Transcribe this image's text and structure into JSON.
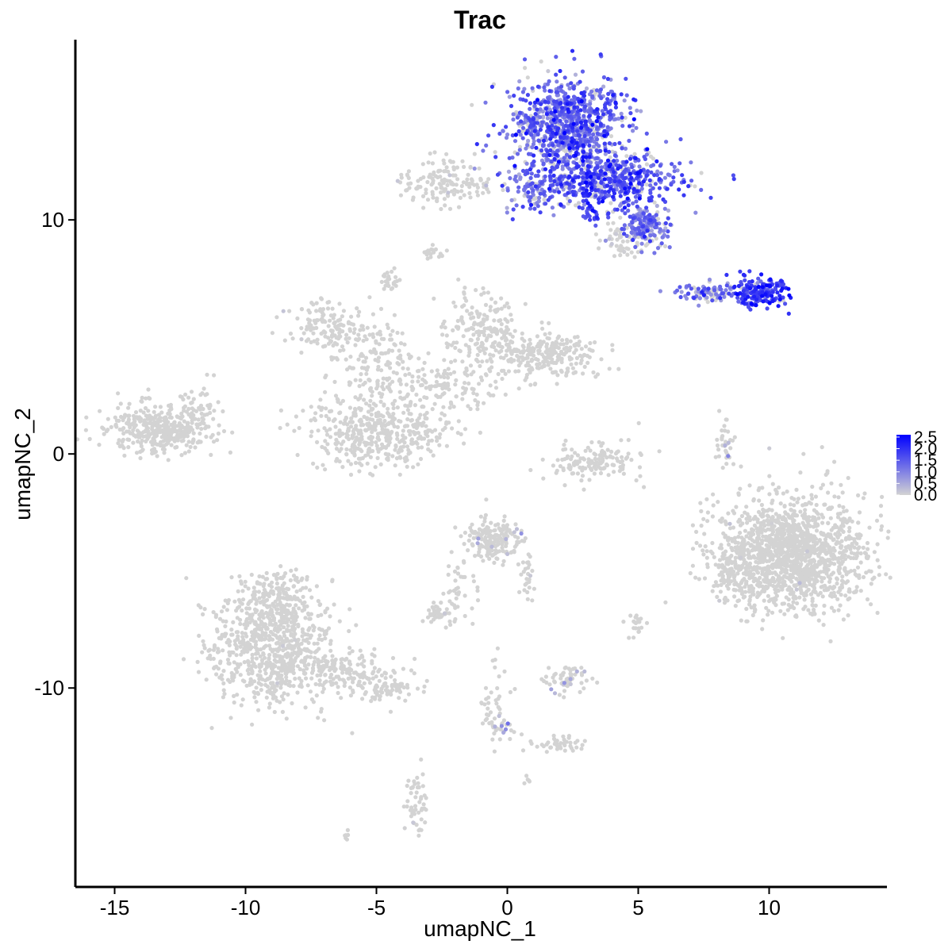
{
  "chart_data": {
    "type": "scatter",
    "title": "Trac",
    "xlabel": "umapNC_1",
    "ylabel": "umapNC_2",
    "xlim": [
      -16.5,
      14.5
    ],
    "ylim": [
      -18.5,
      17.7
    ],
    "x_ticks": [
      -15,
      -10,
      -5,
      0,
      5,
      10
    ],
    "x_tick_labels": [
      "-15",
      "-10",
      "-5",
      "0",
      "5",
      "10"
    ],
    "y_ticks": [
      -10,
      0,
      10
    ],
    "y_tick_labels": [
      "-10",
      "0",
      "10"
    ],
    "grid": false,
    "legend_position": "right",
    "color_scale": {
      "low": "#d3d3d3",
      "high": "#0000ff",
      "min": 0,
      "max": 2.6,
      "breaks": [
        0.0,
        0.5,
        1.0,
        1.5,
        2.0,
        2.5
      ],
      "break_labels": [
        "0.0",
        "0.5",
        "1.0",
        "1.5",
        "2.0",
        "2.5"
      ]
    },
    "clusters": [
      {
        "cx": 2.3,
        "cy": 14.0,
        "sx": 1.1,
        "sy": 1.0,
        "n": 900,
        "expr_mean": 1.3,
        "expr_sd": 0.5,
        "expr_frac": 0.9
      },
      {
        "cx": 4.0,
        "cy": 11.7,
        "sx": 1.3,
        "sy": 0.6,
        "n": 520,
        "expr_mean": 1.5,
        "expr_sd": 0.5,
        "expr_frac": 0.88
      },
      {
        "cx": 5.3,
        "cy": 9.8,
        "sx": 0.5,
        "sy": 0.4,
        "n": 170,
        "expr_mean": 1.2,
        "expr_sd": 0.4,
        "expr_frac": 0.85
      },
      {
        "cx": 1.0,
        "cy": 11.2,
        "sx": 0.6,
        "sy": 0.5,
        "n": 90,
        "expr_mean": 1.1,
        "expr_sd": 0.4,
        "expr_frac": 0.8
      },
      {
        "cx": 3.2,
        "cy": 10.1,
        "sx": 0.2,
        "sy": 0.15,
        "n": 15,
        "expr_mean": 1.6,
        "expr_sd": 0.3,
        "expr_frac": 1.0
      },
      {
        "cx": 4.4,
        "cy": 9.2,
        "sx": 0.5,
        "sy": 0.4,
        "n": 60,
        "expr_mean": 0.1,
        "expr_sd": 0.1,
        "expr_frac": 0.1
      },
      {
        "cx": 9.6,
        "cy": 6.9,
        "sx": 0.45,
        "sy": 0.3,
        "n": 200,
        "expr_mean": 1.8,
        "expr_sd": 0.4,
        "expr_frac": 0.95
      },
      {
        "cx": 7.6,
        "cy": 6.9,
        "sx": 0.7,
        "sy": 0.2,
        "n": 90,
        "expr_mean": 1.1,
        "expr_sd": 0.4,
        "expr_frac": 0.8
      },
      {
        "cx": -2.6,
        "cy": 11.6,
        "sx": 0.7,
        "sy": 0.5,
        "n": 120,
        "expr_mean": 0.1,
        "expr_sd": 0.1,
        "expr_frac": 0.05
      },
      {
        "cx": -1.2,
        "cy": 11.4,
        "sx": 0.6,
        "sy": 0.2,
        "n": 30,
        "expr_mean": 0.1,
        "expr_sd": 0.1,
        "expr_frac": 0.05
      },
      {
        "cx": -2.8,
        "cy": 8.6,
        "sx": 0.2,
        "sy": 0.15,
        "n": 20,
        "expr_mean": 0,
        "expr_sd": 0,
        "expr_frac": 0
      },
      {
        "cx": -4.4,
        "cy": 7.4,
        "sx": 0.2,
        "sy": 0.2,
        "n": 25,
        "expr_mean": 0,
        "expr_sd": 0,
        "expr_frac": 0
      },
      {
        "cx": -6.8,
        "cy": 5.5,
        "sx": 0.8,
        "sy": 0.5,
        "n": 140,
        "expr_mean": 0.05,
        "expr_sd": 0.1,
        "expr_frac": 0.02
      },
      {
        "cx": -5.0,
        "cy": 4.0,
        "sx": 0.9,
        "sy": 0.8,
        "n": 150,
        "expr_mean": 0,
        "expr_sd": 0,
        "expr_frac": 0
      },
      {
        "cx": -1.0,
        "cy": 5.2,
        "sx": 0.7,
        "sy": 0.9,
        "n": 180,
        "expr_mean": 0,
        "expr_sd": 0,
        "expr_frac": 0
      },
      {
        "cx": 1.5,
        "cy": 4.3,
        "sx": 1.0,
        "sy": 0.5,
        "n": 260,
        "expr_mean": 0,
        "expr_sd": 0,
        "expr_frac": 0
      },
      {
        "cx": -2.5,
        "cy": 2.8,
        "sx": 1.0,
        "sy": 0.6,
        "n": 120,
        "expr_mean": 0,
        "expr_sd": 0,
        "expr_frac": 0
      },
      {
        "cx": -5.3,
        "cy": 0.9,
        "sx": 1.1,
        "sy": 0.8,
        "n": 380,
        "expr_mean": 0,
        "expr_sd": 0,
        "expr_frac": 0
      },
      {
        "cx": -3.2,
        "cy": 1.0,
        "sx": 0.9,
        "sy": 0.5,
        "n": 60,
        "expr_mean": 0,
        "expr_sd": 0,
        "expr_frac": 0
      },
      {
        "cx": -13.3,
        "cy": 1.1,
        "sx": 1.0,
        "sy": 0.5,
        "n": 380,
        "expr_mean": 0,
        "expr_sd": 0,
        "expr_frac": 0
      },
      {
        "cx": -11.8,
        "cy": 2.0,
        "sx": 0.4,
        "sy": 0.5,
        "n": 40,
        "expr_mean": 0,
        "expr_sd": 0,
        "expr_frac": 0
      },
      {
        "cx": 3.3,
        "cy": -0.4,
        "sx": 0.9,
        "sy": 0.4,
        "n": 140,
        "expr_mean": 0.05,
        "expr_sd": 0.1,
        "expr_frac": 0.02
      },
      {
        "cx": 8.3,
        "cy": 0.3,
        "sx": 0.2,
        "sy": 0.6,
        "n": 35,
        "expr_mean": 0.3,
        "expr_sd": 0.3,
        "expr_frac": 0.1
      },
      {
        "cx": 10.8,
        "cy": -4.3,
        "sx": 1.4,
        "sy": 1.2,
        "n": 1500,
        "expr_mean": 0.05,
        "expr_sd": 0.1,
        "expr_frac": 0.01
      },
      {
        "cx": 8.7,
        "cy": -5.2,
        "sx": 0.4,
        "sy": 0.6,
        "n": 60,
        "expr_mean": 0,
        "expr_sd": 0,
        "expr_frac": 0
      },
      {
        "cx": -0.6,
        "cy": -3.6,
        "sx": 0.5,
        "sy": 0.5,
        "n": 180,
        "expr_mean": 0.3,
        "expr_sd": 0.4,
        "expr_frac": 0.05
      },
      {
        "cx": 0.8,
        "cy": -5.2,
        "sx": 0.15,
        "sy": 0.5,
        "n": 25,
        "expr_mean": 0.1,
        "expr_sd": 0.2,
        "expr_frac": 0.05
      },
      {
        "cx": -1.9,
        "cy": -6.0,
        "sx": 0.3,
        "sy": 0.6,
        "n": 40,
        "expr_mean": 0,
        "expr_sd": 0,
        "expr_frac": 0
      },
      {
        "cx": -2.6,
        "cy": -6.8,
        "sx": 0.3,
        "sy": 0.2,
        "n": 40,
        "expr_mean": 0.05,
        "expr_sd": 0.1,
        "expr_frac": 0.03
      },
      {
        "cx": -9.0,
        "cy": -8.3,
        "sx": 1.2,
        "sy": 1.2,
        "n": 750,
        "expr_mean": 0.05,
        "expr_sd": 0.1,
        "expr_frac": 0.01
      },
      {
        "cx": -9.0,
        "cy": -6.2,
        "sx": 0.7,
        "sy": 0.6,
        "n": 130,
        "expr_mean": 0,
        "expr_sd": 0,
        "expr_frac": 0
      },
      {
        "cx": -6.3,
        "cy": -9.3,
        "sx": 1.1,
        "sy": 0.4,
        "n": 140,
        "expr_mean": 0,
        "expr_sd": 0,
        "expr_frac": 0
      },
      {
        "cx": -4.5,
        "cy": -10.0,
        "sx": 0.6,
        "sy": 0.3,
        "n": 70,
        "expr_mean": 0,
        "expr_sd": 0,
        "expr_frac": 0
      },
      {
        "cx": 2.2,
        "cy": -9.6,
        "sx": 0.5,
        "sy": 0.3,
        "n": 60,
        "expr_mean": 0.3,
        "expr_sd": 0.4,
        "expr_frac": 0.1
      },
      {
        "cx": 2.0,
        "cy": -12.4,
        "sx": 0.5,
        "sy": 0.2,
        "n": 40,
        "expr_mean": 0,
        "expr_sd": 0,
        "expr_frac": 0
      },
      {
        "cx": -0.5,
        "cy": -10.5,
        "sx": 0.3,
        "sy": 0.9,
        "n": 40,
        "expr_mean": 0.05,
        "expr_sd": 0.1,
        "expr_frac": 0.02
      },
      {
        "cx": -0.2,
        "cy": -11.8,
        "sx": 0.3,
        "sy": 0.3,
        "n": 20,
        "expr_mean": 0.5,
        "expr_sd": 0.4,
        "expr_frac": 0.2
      },
      {
        "cx": -3.5,
        "cy": -14.8,
        "sx": 0.2,
        "sy": 0.6,
        "n": 50,
        "expr_mean": 0.05,
        "expr_sd": 0.1,
        "expr_frac": 0.02
      },
      {
        "cx": 5.0,
        "cy": -7.3,
        "sx": 0.2,
        "sy": 0.3,
        "n": 20,
        "expr_mean": 0.05,
        "expr_sd": 0.1,
        "expr_frac": 0.02
      },
      {
        "cx": -6.1,
        "cy": -16.3,
        "sx": 0.1,
        "sy": 0.1,
        "n": 6,
        "expr_mean": 0,
        "expr_sd": 0,
        "expr_frac": 0
      },
      {
        "cx": 0.7,
        "cy": -14.0,
        "sx": 0.1,
        "sy": 0.1,
        "n": 6,
        "expr_mean": 0,
        "expr_sd": 0,
        "expr_frac": 0
      }
    ]
  }
}
